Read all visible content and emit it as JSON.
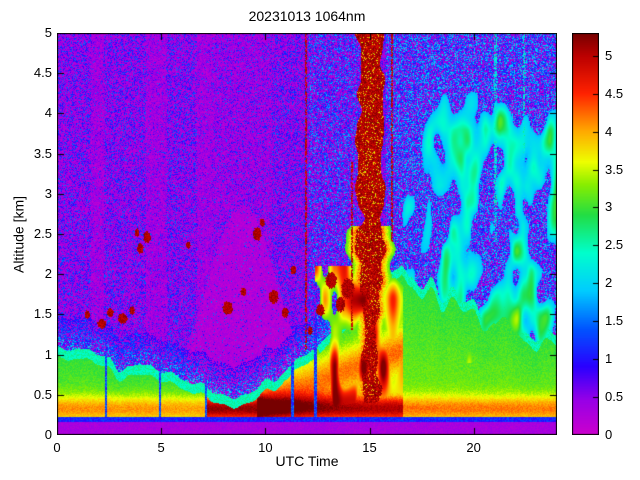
{
  "title": "20231013 1064nm",
  "chart_data": {
    "type": "heatmap",
    "title": "20231013 1064nm",
    "xlabel": "UTC Time",
    "ylabel": "Altitude [km]",
    "xlim": [
      0,
      24
    ],
    "ylim": [
      0,
      5
    ],
    "x_tick_values": [
      0,
      5,
      10,
      15,
      20
    ],
    "x_tick_labels": [
      "0",
      "5",
      "10",
      "15",
      "20"
    ],
    "y_tick_values": [
      0,
      0.5,
      1,
      1.5,
      2,
      2.5,
      3,
      3.5,
      4,
      4.5,
      5
    ],
    "y_tick_labels": [
      "0",
      "0.5",
      "1",
      "1.5",
      "2",
      "2.5",
      "3",
      "3.5",
      "4",
      "4.5",
      "5"
    ],
    "colorbar": {
      "min": 0,
      "max": 5.3,
      "tick_values": [
        0,
        0.5,
        1,
        1.5,
        2,
        2.5,
        3,
        3.5,
        4,
        4.5,
        5
      ],
      "tick_labels": [
        "0",
        "0.5",
        "1",
        "1.5",
        "2",
        "2.5",
        "3",
        "3.5",
        "4",
        "4.5",
        "5"
      ]
    },
    "colormap_stops": [
      {
        "v": 0.0,
        "c": "#cc00cc"
      },
      {
        "v": 0.45,
        "c": "#9900e6"
      },
      {
        "v": 0.9,
        "c": "#2a00ff"
      },
      {
        "v": 1.4,
        "c": "#0055ff"
      },
      {
        "v": 1.9,
        "c": "#00ccff"
      },
      {
        "v": 2.4,
        "c": "#00ffcc"
      },
      {
        "v": 2.9,
        "c": "#22dd44"
      },
      {
        "v": 3.3,
        "c": "#88ee00"
      },
      {
        "v": 3.6,
        "c": "#eeff00"
      },
      {
        "v": 4.0,
        "c": "#ffaa00"
      },
      {
        "v": 4.5,
        "c": "#ff2200"
      },
      {
        "v": 5.0,
        "c": "#bb0000"
      },
      {
        "v": 5.3,
        "c": "#770000"
      }
    ],
    "render": {
      "seed": 20231013,
      "surface_bands": {
        "magenta_top_km": 0.16,
        "blue_line_top_km": 0.225
      },
      "boundary_layer": {
        "x": [
          0,
          1,
          2,
          3,
          4,
          5,
          6,
          7,
          7.8,
          8.5,
          9.2,
          10,
          11,
          12,
          13,
          14,
          15,
          16,
          17,
          18,
          19,
          20,
          21,
          22,
          23,
          24
        ],
        "h": [
          1.05,
          1.0,
          0.95,
          0.85,
          0.8,
          0.75,
          0.68,
          0.58,
          0.5,
          0.45,
          0.5,
          0.62,
          0.8,
          0.95,
          1.15,
          1.35,
          1.5,
          1.75,
          1.95,
          1.8,
          1.65,
          1.55,
          1.45,
          1.35,
          1.25,
          1.15
        ]
      },
      "dome": {
        "x_center": 8.9,
        "x_sigma": 2.4,
        "top_max": 2.85,
        "base": 0.35
      },
      "plume": {
        "x_center": 15.08,
        "y_base": 0.4,
        "base_halfwidth": 0.22,
        "value": 4.9
      },
      "magenta_stripes": [
        [
          1.65,
          2.25
        ],
        [
          4.25,
          5.3
        ],
        [
          6.7,
          7.45
        ]
      ],
      "shadow_columns": [
        [
          2.35,
          0.06
        ],
        [
          4.95,
          0.05
        ],
        [
          7.15,
          0.05
        ],
        [
          11.3,
          0.06
        ],
        [
          12.42,
          0.07
        ]
      ],
      "dark_streaks": [
        [
          11.95,
          0.05,
          1.05,
          5.0
        ],
        [
          14.15,
          0.045,
          1.3,
          3.4
        ],
        [
          16.1,
          0.05,
          2.4,
          5.0
        ]
      ],
      "cyan_streaks": [
        [
          21.05,
          0.07,
          2.4
        ],
        [
          22.4,
          0.05,
          3.4
        ]
      ],
      "cloud_blobs": [
        [
          1.45,
          1.5,
          0.12,
          0.05
        ],
        [
          2.15,
          1.38,
          0.2,
          0.06
        ],
        [
          2.55,
          1.52,
          0.16,
          0.05
        ],
        [
          3.15,
          1.45,
          0.22,
          0.06
        ],
        [
          3.6,
          1.55,
          0.12,
          0.05
        ],
        [
          4.0,
          2.32,
          0.15,
          0.06
        ],
        [
          4.32,
          2.46,
          0.18,
          0.07
        ],
        [
          3.85,
          2.52,
          0.1,
          0.05
        ],
        [
          6.3,
          2.36,
          0.1,
          0.04
        ],
        [
          8.2,
          1.58,
          0.24,
          0.08
        ],
        [
          8.95,
          1.78,
          0.13,
          0.05
        ],
        [
          9.6,
          2.5,
          0.2,
          0.08
        ],
        [
          9.85,
          2.64,
          0.11,
          0.05
        ],
        [
          10.4,
          1.72,
          0.22,
          0.08
        ],
        [
          10.95,
          1.52,
          0.16,
          0.06
        ],
        [
          11.35,
          2.05,
          0.13,
          0.05
        ],
        [
          12.15,
          1.3,
          0.12,
          0.05
        ],
        [
          12.65,
          1.55,
          0.2,
          0.07
        ],
        [
          13.15,
          1.92,
          0.26,
          0.1
        ],
        [
          13.6,
          1.62,
          0.22,
          0.09
        ],
        [
          13.95,
          1.82,
          0.3,
          0.12
        ]
      ]
    }
  }
}
